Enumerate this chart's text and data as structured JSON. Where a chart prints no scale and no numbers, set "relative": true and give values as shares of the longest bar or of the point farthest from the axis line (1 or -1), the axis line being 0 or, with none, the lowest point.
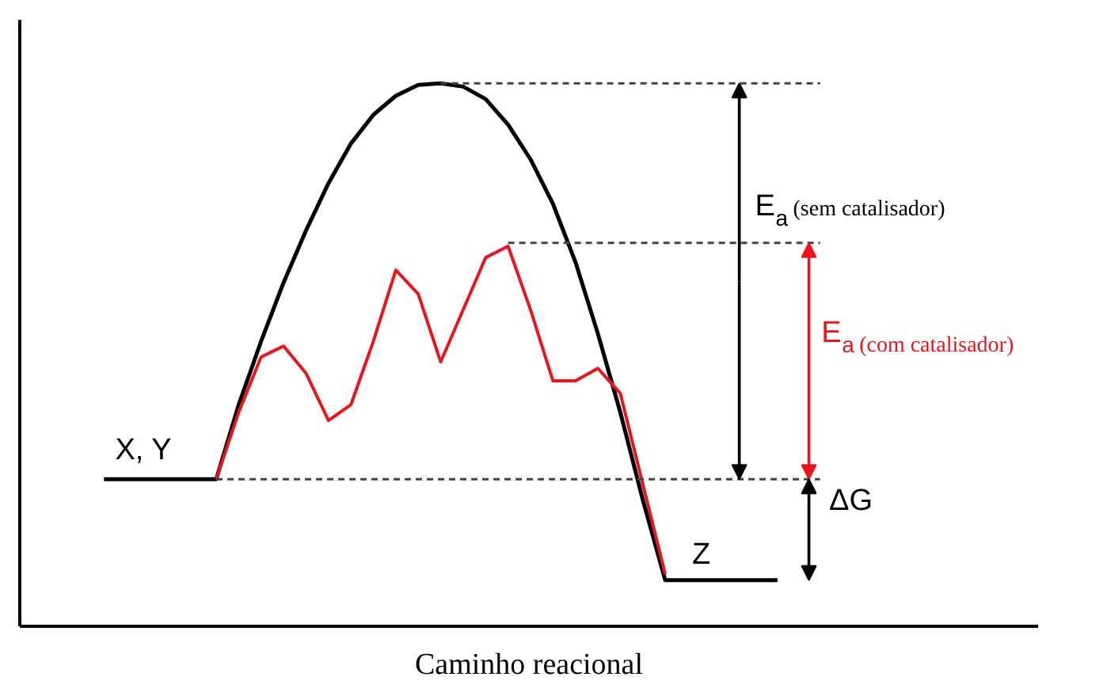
{
  "chart_data": {
    "type": "line",
    "relative": true,
    "xlabel": "Caminho reacional",
    "categories": [
      null,
      null,
      null,
      null,
      null,
      null,
      null,
      null,
      null,
      null,
      null,
      null,
      null,
      null,
      null,
      null,
      null,
      null,
      null,
      null,
      null,
      null,
      null,
      null,
      null,
      null,
      null,
      null,
      null,
      null,
      null
    ],
    "series": [
      {
        "color": "#000000",
        "values": [
          0.271,
          0.271,
          0.271,
          0.271,
          0.271,
          0.271,
          0.408,
          0.525,
          0.633,
          0.729,
          0.816,
          0.889,
          0.942,
          0.977,
          0.997,
          1.0,
          0.994,
          0.971,
          0.924,
          0.86,
          0.778,
          0.671,
          0.539,
          0.394,
          0.233,
          0.085,
          0.085,
          0.085,
          0.085,
          0.085,
          0.085
        ]
      },
      {
        "color": "#e8161b",
        "values": [
          null,
          null,
          null,
          null,
          null,
          0.271,
          0.394,
          0.496,
          0.516,
          0.466,
          0.379,
          0.408,
          0.525,
          0.656,
          0.612,
          0.487,
          0.583,
          0.679,
          0.7,
          0.583,
          0.452,
          0.452,
          0.475,
          0.429,
          0.262,
          0.096,
          null,
          null,
          null,
          null,
          null
        ]
      }
    ],
    "ref_lines": [
      {
        "axis": "y",
        "value": 1.0,
        "color": "#444444",
        "line_style": "dashed"
      },
      {
        "axis": "y",
        "value": 0.706,
        "color": "#444444",
        "line_style": "dashed"
      },
      {
        "axis": "y",
        "value": 0.271,
        "color": "#444444",
        "line_style": "dashed"
      }
    ],
    "annotations": [
      {
        "text": "X, Y",
        "y": 0.271
      },
      {
        "text": "Z",
        "y": 0.085
      },
      "E$_{a}$ (sem catalisador)",
      "E$_{a}$ (com catalisador)",
      "ΔG"
    ],
    "grid": false,
    "marker": "none",
    "line_style": "solid"
  }
}
